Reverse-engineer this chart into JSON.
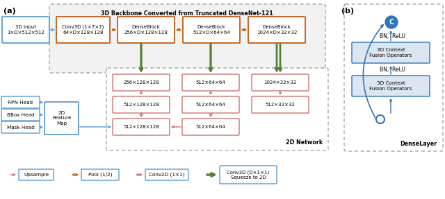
{
  "fig_width": 6.4,
  "fig_height": 2.87,
  "dpi": 100,
  "bg_color": "#ffffff",
  "label_a": "(a)",
  "label_b": "(b)",
  "backbone_title": "3D Backbone Converted from Truncated DenseNet-121",
  "network_2d_label": "2D Network",
  "dense_layer_label": "DenseLayer",
  "box_3d_input": "3D Input\n1×D×512×512",
  "box_conv3d": "Conv3D (1×7×7)\n64×D×128×128",
  "box_dense1": "DenseBlock\n256×D×128×128",
  "box_dense2": "DenseBlock\n512×D×64×64",
  "box_dense3": "DenseBlock\n1024×D×32×32",
  "box_256": "256×128×128",
  "box_512_128": "512×128×128",
  "box_512_64": "512×64×64",
  "box_1024": "1024×32×32",
  "box_512_32": "512×32×32",
  "box_512_128_bot": "512×128×128",
  "box_512_64_bot": "512×64×64",
  "box_rpn": "RPN Head",
  "box_bbox": "BBox Head",
  "box_mask": "Mask Head",
  "box_2d_feat": "2D\nFeature\nMap",
  "box_3d_ctx1": "3D Context\nFusion Operators",
  "box_3d_ctx2": "3D Context\nFusion Operators",
  "bn_relu1": "BN,  ReLU",
  "bn_relu2": "BN,  ReLU",
  "legend_upsample": "Upsample",
  "legend_pool": "Pool (1/2)",
  "legend_conv2d": "Conv2D (1×1)",
  "legend_conv3d": "Conv3D (D×1×1)\nSqueeze to 2D",
  "color_blue_box": "#5b9bd5",
  "color_orange_box": "#c55a11",
  "color_pink_box": "#c9736e",
  "color_pink_fill": "#fce4e4",
  "color_green_arrow": "#548235",
  "color_pink_arrow": "#c9736e",
  "color_salmon_arrow": "#d9827a",
  "color_orange_arrow": "#c55a11",
  "color_teal": "#2e75b6",
  "color_teal_dark": "#1f5585",
  "color_light_blue_fill": "#dce6f1",
  "color_dashed_border": "#999999",
  "color_backbone_fill": "#f2f2f2"
}
